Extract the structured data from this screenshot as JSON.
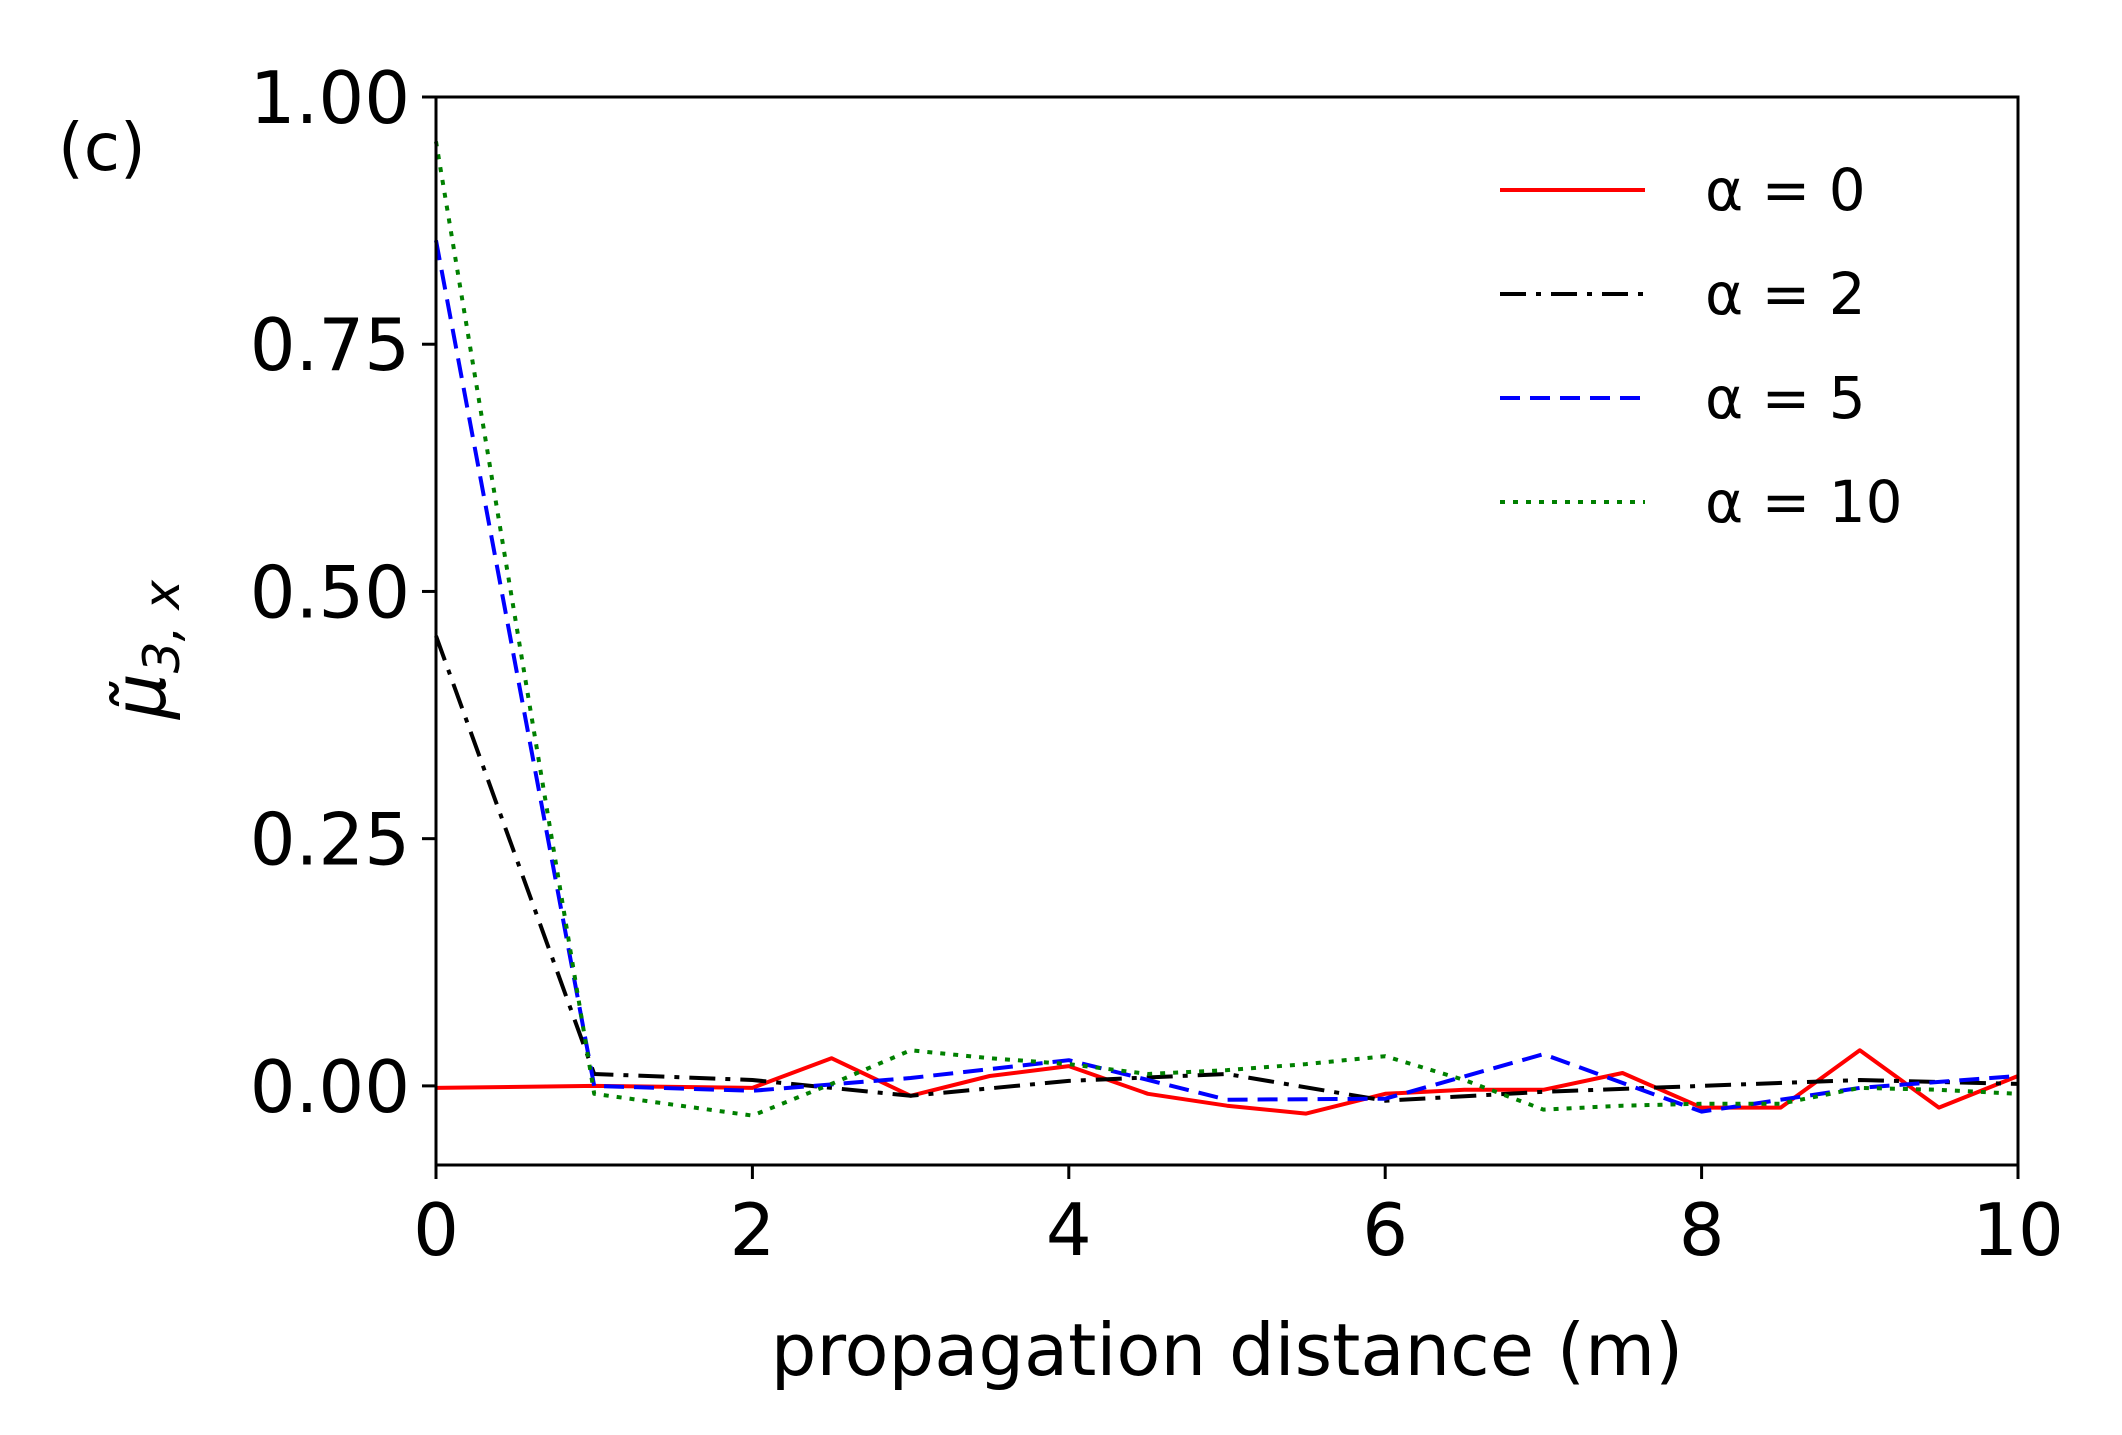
{
  "chart_data": {
    "type": "line",
    "panel_label": "(c)",
    "xlabel": "propagation distance (m)",
    "ylabel": "μ̃",
    "ylabel_sub": "3, x",
    "xlim": [
      0,
      10
    ],
    "ylim": [
      -0.08,
      1.0
    ],
    "xticks": [
      0,
      2,
      4,
      6,
      8,
      10
    ],
    "xtick_labels": [
      "0",
      "2",
      "4",
      "6",
      "8",
      "10"
    ],
    "yticks": [
      0,
      0.25,
      0.5,
      0.75,
      1.0
    ],
    "ytick_labels": [
      "0.00",
      "0.25",
      "0.50",
      "0.75",
      "1.00"
    ],
    "legend_position": "top-right",
    "series": [
      {
        "name": "α = 0",
        "color": "#ff0000",
        "style": "solid",
        "x": [
          0,
          1,
          2,
          2.5,
          3,
          3.5,
          4,
          4.5,
          5,
          5.5,
          6,
          6.5,
          7,
          7.5,
          8,
          8.5,
          9,
          9.5,
          10
        ],
        "y": [
          -0.002,
          0.0,
          -0.002,
          0.028,
          -0.01,
          0.01,
          0.02,
          -0.008,
          -0.02,
          -0.028,
          -0.008,
          -0.004,
          -0.004,
          0.013,
          -0.022,
          -0.022,
          0.036,
          -0.022,
          0.01
        ]
      },
      {
        "name": "α = 2",
        "color": "#000000",
        "style": "dashdot",
        "x": [
          0,
          1,
          2,
          3,
          4,
          5,
          6,
          7,
          8,
          9,
          10
        ],
        "y": [
          0.455,
          0.012,
          0.006,
          -0.01,
          0.005,
          0.012,
          -0.015,
          -0.006,
          0.0,
          0.006,
          0.002
        ]
      },
      {
        "name": "α = 5",
        "color": "#0000ff",
        "style": "dashed",
        "x": [
          0,
          1,
          2,
          3,
          4,
          5,
          6,
          7,
          8,
          9,
          10
        ],
        "y": [
          0.855,
          0.0,
          -0.005,
          0.008,
          0.026,
          -0.014,
          -0.013,
          0.032,
          -0.026,
          -0.002,
          0.01
        ]
      },
      {
        "name": "α = 10",
        "color": "#008000",
        "style": "dotted",
        "x": [
          0,
          1,
          2,
          2.5,
          3,
          3.5,
          4,
          4.5,
          5,
          5.5,
          6,
          6.5,
          7,
          7.5,
          8,
          8.5,
          9,
          9.5,
          10
        ],
        "y": [
          0.955,
          -0.008,
          -0.03,
          0.002,
          0.036,
          0.028,
          0.022,
          0.012,
          0.016,
          0.022,
          0.03,
          0.006,
          -0.024,
          -0.02,
          -0.018,
          -0.018,
          -0.002,
          -0.004,
          -0.008
        ]
      }
    ]
  }
}
